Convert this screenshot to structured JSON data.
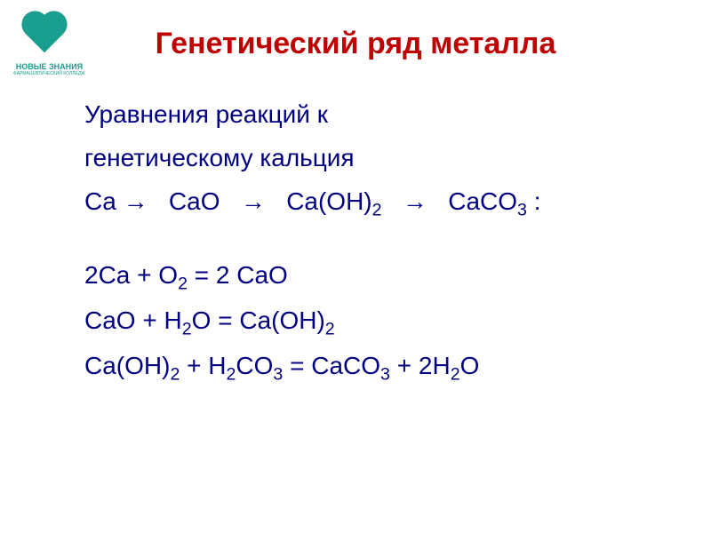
{
  "logo": {
    "brand": "НОВЫЕ ЗНАНИЯ",
    "subtitle": "ФАРМАЦЕВТИЧЕСКИЙ КОЛЛЕДЖ",
    "icon_color": "#1a9e8f"
  },
  "title": {
    "text": "Генетический ряд металла",
    "color": "#c00000",
    "fontsize": 34
  },
  "intro": {
    "line1": "Уравнения реакций  к",
    "line2": "генетическому кальция"
  },
  "chain": {
    "step1": "Ca",
    "step2": "CaO",
    "step3": "Ca(OH)",
    "step3_sub": "2",
    "step4": "CaCO",
    "step4_sub": "3",
    "arrow": "→",
    "suffix": " :"
  },
  "equations": {
    "eq1": {
      "lhs_coef1": "2",
      "lhs_species1": "Ca",
      "plus": " +  ",
      "lhs_species2": "O",
      "lhs_sub2": "2",
      "equals": " = ",
      "rhs_coef1": "2 ",
      "rhs_species1": "CaO"
    },
    "eq2": {
      "lhs_species1": "CaO",
      "plus": " + ",
      "lhs_species2": "H",
      "lhs_sub2": "2",
      "lhs_species2b": "O",
      "equals": " = ",
      "rhs_species1": "Ca(OH)",
      "rhs_sub1": "2"
    },
    "eq3": {
      "lhs_species1": "Ca(OH)",
      "lhs_sub1": "2",
      "plus": "  + ",
      "lhs_species2": "H",
      "lhs_sub2": "2",
      "lhs_species2b": "CO",
      "lhs_sub2b": "3",
      "equals": " = ",
      "rhs_species1": "CaCO",
      "rhs_sub1": "3",
      "plus2": "  + ",
      "rhs_coef2": "2",
      "rhs_species2": "H",
      "rhs_sub2": "2",
      "rhs_species2b": "O"
    }
  },
  "styles": {
    "text_color": "#000080",
    "background": "#ffffff",
    "body_fontsize": 28,
    "line_height": 1.5
  }
}
